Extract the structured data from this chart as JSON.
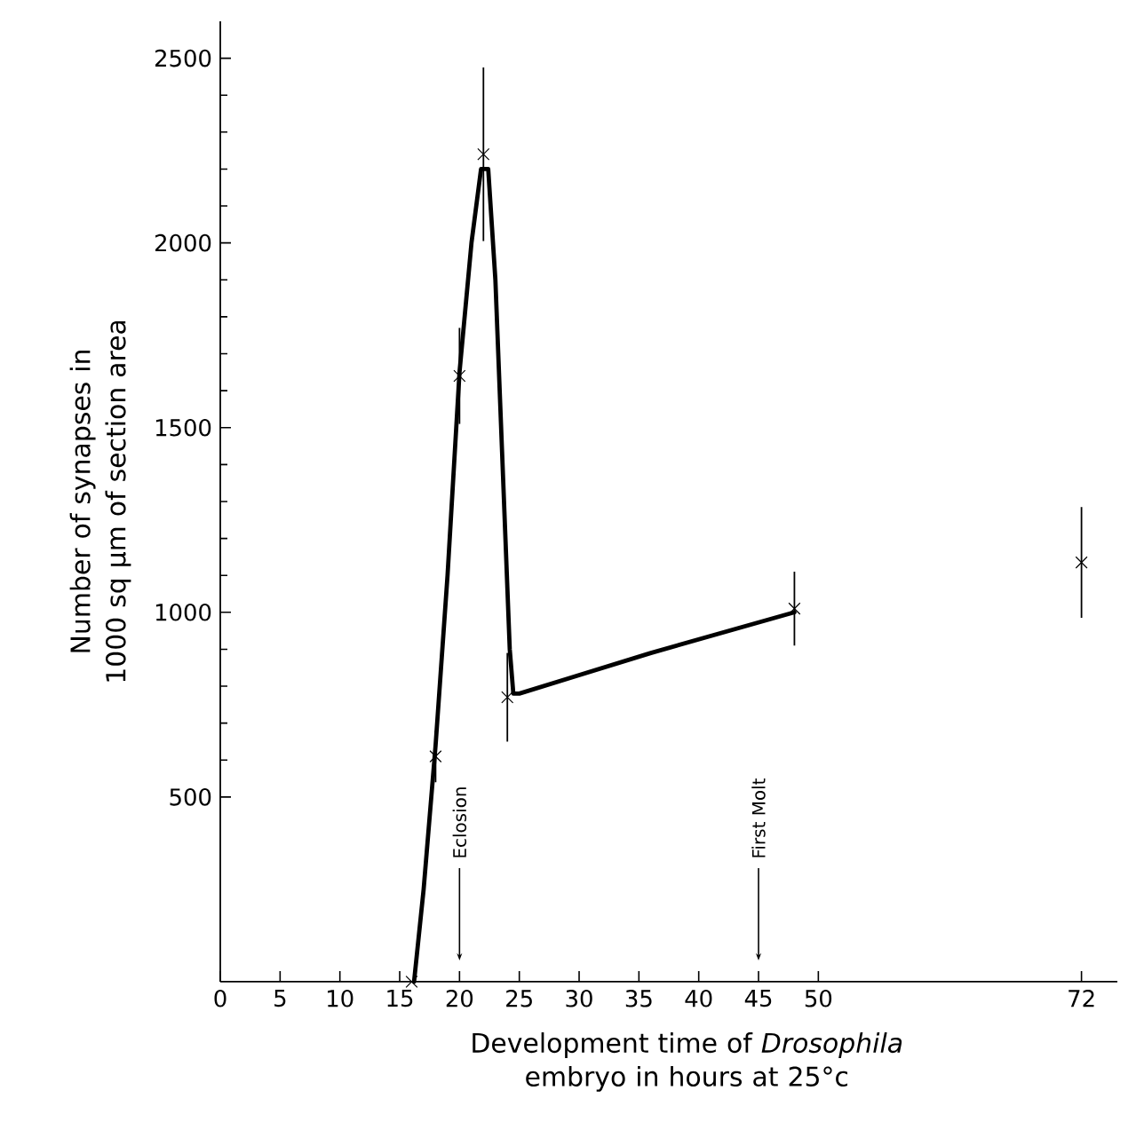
{
  "chart_data": [
    {
      "type": "scatter",
      "xlabel": "Development time of *Drosophila* embryo in hours at 25°c",
      "ylabel": "Number of synapses in 1000 sq μm of section area",
      "xlim": [
        0,
        75
      ],
      "xticks": [
        0,
        5,
        10,
        15,
        20,
        25,
        30,
        35,
        40,
        45,
        50,
        72
      ],
      "ylim": [
        0,
        2600
      ],
      "yticks": [
        500,
        1000,
        1500,
        2000,
        2500
      ],
      "marker": "cross",
      "ref_lines": [
        {
          "axis": "x",
          "value": 20,
          "label": "Eclosion"
        },
        {
          "axis": "x",
          "value": 45,
          "label": "First Molt"
        }
      ],
      "series": [
        {
          "color": "#000000",
          "x": [
            16,
            18,
            20,
            22,
            24,
            48,
            72
          ],
          "values": [
            0,
            610,
            1640,
            2240,
            770,
            1010,
            1135
          ],
          "errors": [
            null,
            70,
            130,
            235,
            120,
            100,
            150
          ]
        },
        {
          "type": "line",
          "color": "#000000",
          "line_style": "solid",
          "marker": "none",
          "x": [
            16.2,
            17,
            18,
            19,
            20,
            21,
            21.8,
            22.4,
            23,
            23.6,
            24.2,
            24.5,
            25,
            36,
            48
          ],
          "values": [
            0,
            250,
            640,
            1100,
            1650,
            2000,
            2200,
            2200,
            1900,
            1400,
            900,
            780,
            780,
            890,
            1000
          ]
        }
      ]
    }
  ]
}
